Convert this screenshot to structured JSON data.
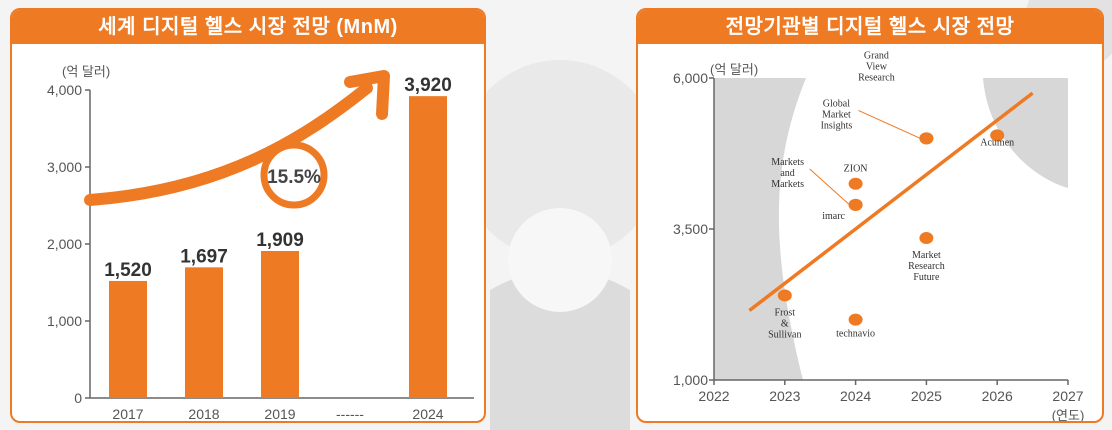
{
  "colors": {
    "accent": "#ee7a24",
    "axis": "#666666",
    "text": "#555555",
    "panel_bg": "#ffffff"
  },
  "chart_data": [
    {
      "type": "bar",
      "title": "세계 디지털 헬스 시장 전망 (MnM)",
      "unit_label": "(억 달러)",
      "categories": [
        "2017",
        "2018",
        "2019",
        "------",
        "2024"
      ],
      "values": [
        1520,
        1697,
        1909,
        null,
        3920
      ],
      "value_labels": [
        "1,520",
        "1,697",
        "1,909",
        "",
        "3,920"
      ],
      "yticks": [
        0,
        1000,
        2000,
        3000,
        4000
      ],
      "ytick_labels": [
        "0",
        "1,000",
        "2,000",
        "3,000",
        "4,000"
      ],
      "ylim": [
        0,
        4000
      ],
      "growth_annotation": "15.5%",
      "grid": false
    },
    {
      "type": "scatter",
      "title": "전망기관별 디지털 헬스 시장 전망",
      "unit_label": "(억 달러)",
      "xlabel": "(연도)",
      "xlim": [
        2022,
        2027
      ],
      "xticks": [
        2022,
        2023,
        2024,
        2025,
        2026,
        2027
      ],
      "xtick_labels": [
        "2022",
        "2023",
        "2024",
        "2025",
        "2026",
        "2027"
      ],
      "ylim": [
        1000,
        6000
      ],
      "yticks": [
        1000,
        3500,
        6000
      ],
      "ytick_labels": [
        "1,000",
        "3,500",
        "6,000"
      ],
      "points": [
        {
          "label": "Frost & Sullivan",
          "x": 2023,
          "y": 2400
        },
        {
          "label": "technavio",
          "x": 2024,
          "y": 2000
        },
        {
          "label": "imarc",
          "x": 2024,
          "y": 3900
        },
        {
          "label": "Markets and Markets",
          "x": 2024,
          "y": 3900
        },
        {
          "label": "ZION",
          "x": 2024,
          "y": 4250
        },
        {
          "label": "Global Market Insights",
          "x": 2025,
          "y": 5000
        },
        {
          "label": "Grand View Research",
          "x": 2025,
          "y": 5000
        },
        {
          "label": "Market Research Future",
          "x": 2025,
          "y": 3350
        },
        {
          "label": "Acumen",
          "x": 2026,
          "y": 5050
        }
      ],
      "trend_line": [
        [
          2022.5,
          2150
        ],
        [
          2026.5,
          5750
        ]
      ],
      "grid": false
    }
  ]
}
